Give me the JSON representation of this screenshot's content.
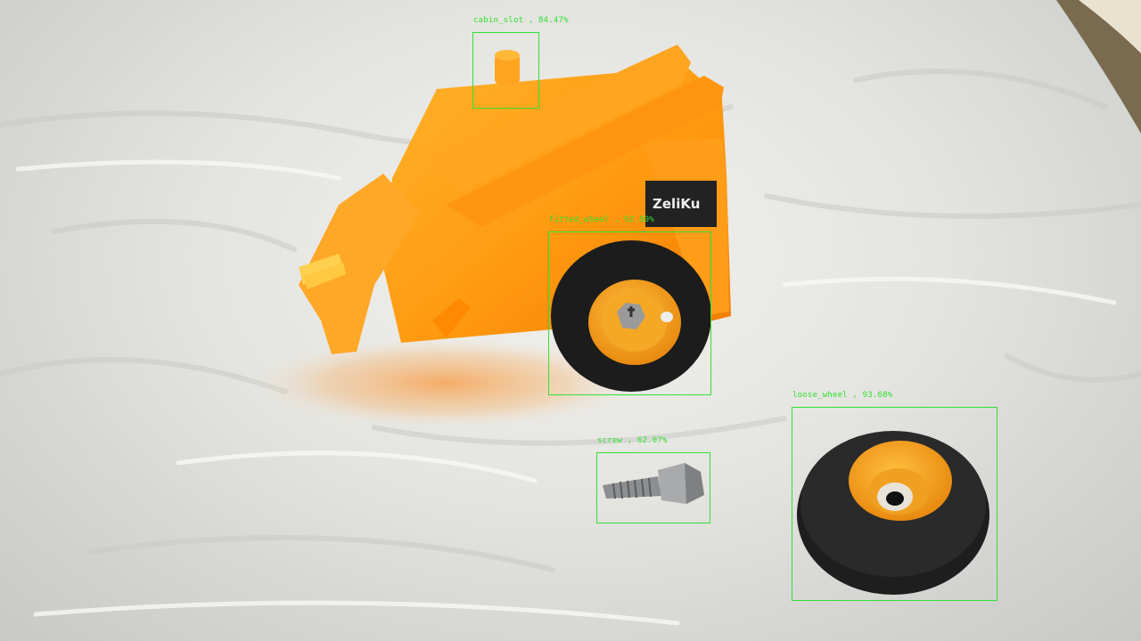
{
  "image": {
    "description_kind": "object-detection-overlay",
    "colors": {
      "box": "#33e033",
      "label": "#2fe02f",
      "toy_body": "#ff9a10",
      "wheel_tire": "#1e1e1e",
      "wheel_hub": "#f0a020",
      "cloth": "#e8e8e5"
    }
  },
  "brand": {
    "text": "ZeliKu"
  },
  "detections": [
    {
      "label": "cabin_slot , 84.47%"
    },
    {
      "label": "fitted_wheel , 92.89%"
    },
    {
      "label": "loose_wheel , 93.68%"
    },
    {
      "label": "screw , 62.07%"
    }
  ]
}
